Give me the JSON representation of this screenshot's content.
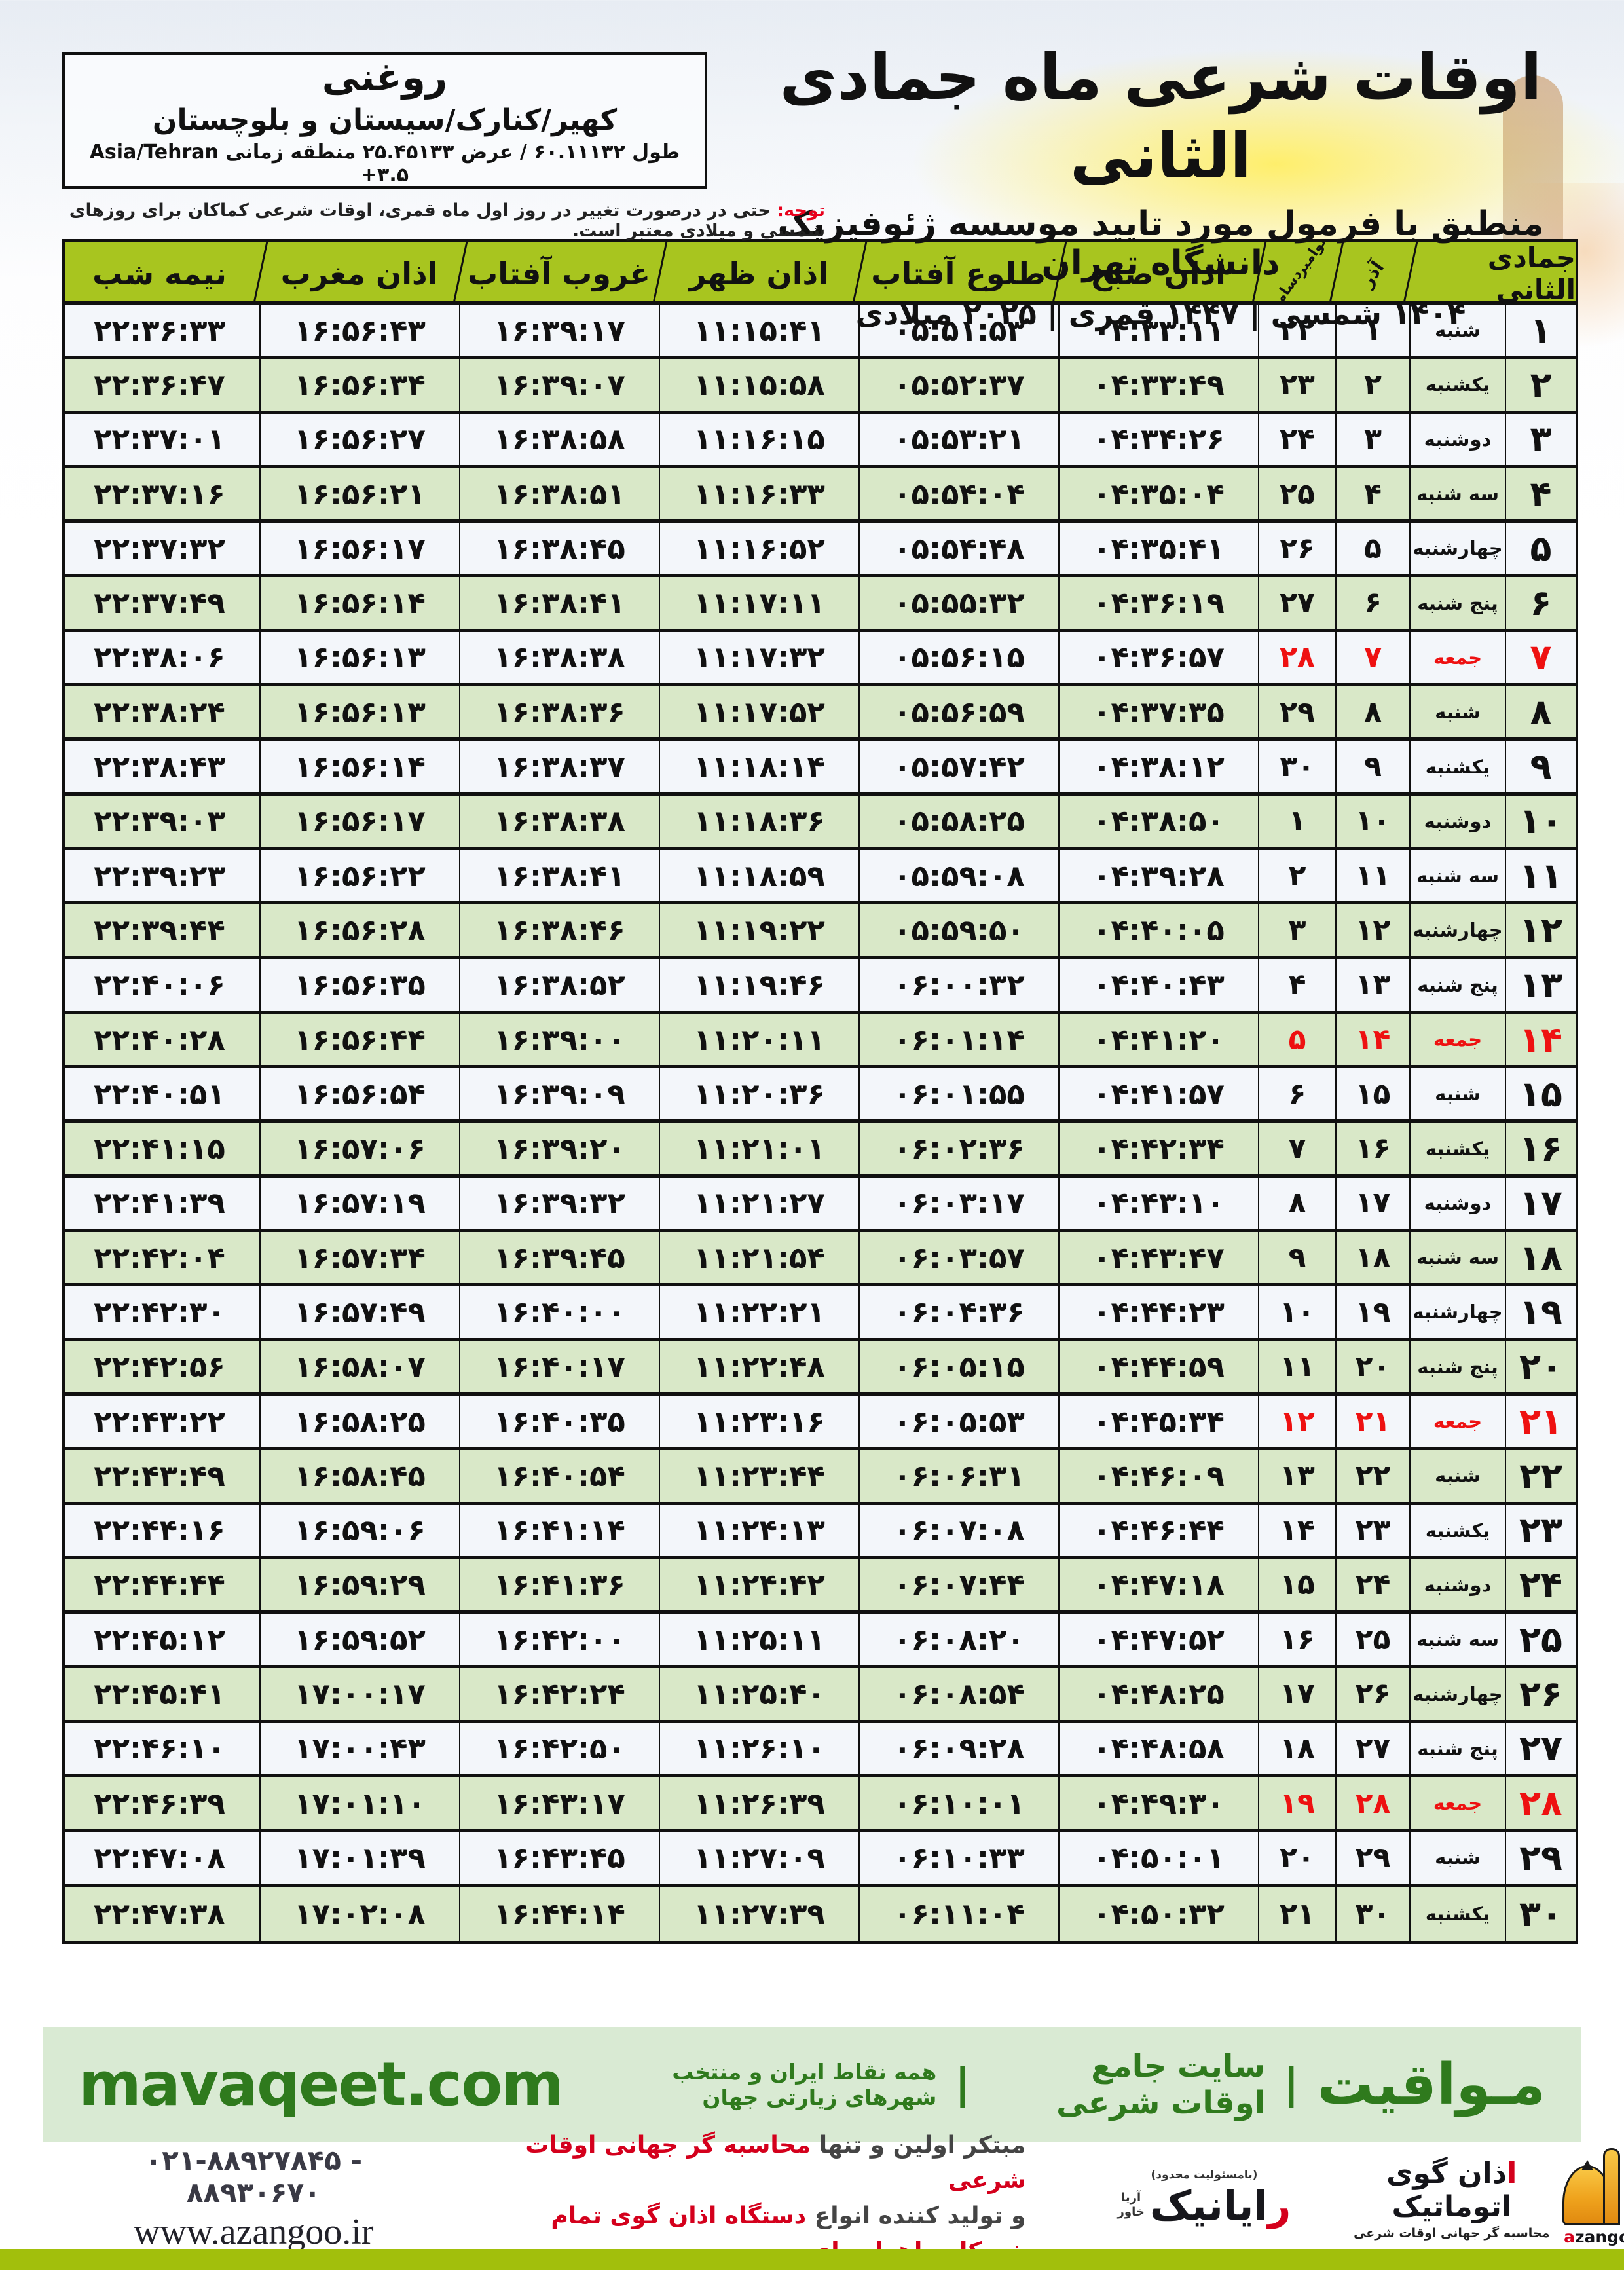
{
  "colors": {
    "header_green": "#a8c51f",
    "row_light": "#f3f6fa",
    "row_green": "#d9e8c8",
    "friday_red": "#ee1111",
    "note_red": "#e8001c",
    "footer_bg": "#d9ead3",
    "footer_text": "#2f7a1d",
    "bottom_red": "#d4001c",
    "strip_green": "#a2bf0c",
    "border": "#101010"
  },
  "header": {
    "title": "اوقات شرعی ماه جمادی الثانی",
    "subtitle": "منطبق با فرمول مورد تایید موسسه ژئوفیزیک دانشگاه تهران",
    "dates": "۱۴۰۴ شمسی | ۱۴۴۷ قمری | ۲۰۲۵ میلادی"
  },
  "location": {
    "name": "روغنی",
    "region": "کهیر/کنارک/سیستان و بلوچستان",
    "coords": "طول ۶۰.۱۱۱۳۲ / عرض ۲۵.۴۵۱۳۳ منطقه زمانی Asia/Tehran +۳.۵"
  },
  "note": {
    "label": "توجه:",
    "text": " حتی در درصورت تغییر در روز اول ماه قمری، اوقات شرعی کماکان برای روزهای شمسی و میلادی معتبر است."
  },
  "table": {
    "headers": {
      "month": "جمادی الثانی",
      "azar": "آذر",
      "nov": "نوامبر",
      "dec": "دسامبر",
      "sobh": "اذان صبح",
      "tolu": "طلوع آفتاب",
      "zohr": "اذان ظهر",
      "ghorub": "غروب آفتاب",
      "maghreb": "اذان مغرب",
      "nimeshab": "نیمه شب"
    },
    "rows": [
      {
        "day": "۱",
        "weekday": "شنبه",
        "azar": "۱",
        "greg": "۲۲",
        "sobh": "۰۴:۳۳:۱۱",
        "tolu": "۰۵:۵۱:۵۳",
        "zohr": "۱۱:۱۵:۴۱",
        "ghorub": "۱۶:۳۹:۱۷",
        "maghreb": "۱۶:۵۶:۴۳",
        "nimeshab": "۲۲:۳۶:۳۳",
        "friday": false
      },
      {
        "day": "۲",
        "weekday": "یکشنبه",
        "azar": "۲",
        "greg": "۲۳",
        "sobh": "۰۴:۳۳:۴۹",
        "tolu": "۰۵:۵۲:۳۷",
        "zohr": "۱۱:۱۵:۵۸",
        "ghorub": "۱۶:۳۹:۰۷",
        "maghreb": "۱۶:۵۶:۳۴",
        "nimeshab": "۲۲:۳۶:۴۷",
        "friday": false
      },
      {
        "day": "۳",
        "weekday": "دوشنبه",
        "azar": "۳",
        "greg": "۲۴",
        "sobh": "۰۴:۳۴:۲۶",
        "tolu": "۰۵:۵۳:۲۱",
        "zohr": "۱۱:۱۶:۱۵",
        "ghorub": "۱۶:۳۸:۵۸",
        "maghreb": "۱۶:۵۶:۲۷",
        "nimeshab": "۲۲:۳۷:۰۱",
        "friday": false
      },
      {
        "day": "۴",
        "weekday": "سه شنبه",
        "azar": "۴",
        "greg": "۲۵",
        "sobh": "۰۴:۳۵:۰۴",
        "tolu": "۰۵:۵۴:۰۴",
        "zohr": "۱۱:۱۶:۳۳",
        "ghorub": "۱۶:۳۸:۵۱",
        "maghreb": "۱۶:۵۶:۲۱",
        "nimeshab": "۲۲:۳۷:۱۶",
        "friday": false
      },
      {
        "day": "۵",
        "weekday": "چهارشنبه",
        "azar": "۵",
        "greg": "۲۶",
        "sobh": "۰۴:۳۵:۴۱",
        "tolu": "۰۵:۵۴:۴۸",
        "zohr": "۱۱:۱۶:۵۲",
        "ghorub": "۱۶:۳۸:۴۵",
        "maghreb": "۱۶:۵۶:۱۷",
        "nimeshab": "۲۲:۳۷:۳۲",
        "friday": false
      },
      {
        "day": "۶",
        "weekday": "پنج شنبه",
        "azar": "۶",
        "greg": "۲۷",
        "sobh": "۰۴:۳۶:۱۹",
        "tolu": "۰۵:۵۵:۳۲",
        "zohr": "۱۱:۱۷:۱۱",
        "ghorub": "۱۶:۳۸:۴۱",
        "maghreb": "۱۶:۵۶:۱۴",
        "nimeshab": "۲۲:۳۷:۴۹",
        "friday": false
      },
      {
        "day": "۷",
        "weekday": "جمعه",
        "azar": "۷",
        "greg": "۲۸",
        "sobh": "۰۴:۳۶:۵۷",
        "tolu": "۰۵:۵۶:۱۵",
        "zohr": "۱۱:۱۷:۳۲",
        "ghorub": "۱۶:۳۸:۳۸",
        "maghreb": "۱۶:۵۶:۱۳",
        "nimeshab": "۲۲:۳۸:۰۶",
        "friday": true
      },
      {
        "day": "۸",
        "weekday": "شنبه",
        "azar": "۸",
        "greg": "۲۹",
        "sobh": "۰۴:۳۷:۳۵",
        "tolu": "۰۵:۵۶:۵۹",
        "zohr": "۱۱:۱۷:۵۲",
        "ghorub": "۱۶:۳۸:۳۶",
        "maghreb": "۱۶:۵۶:۱۳",
        "nimeshab": "۲۲:۳۸:۲۴",
        "friday": false
      },
      {
        "day": "۹",
        "weekday": "یکشنبه",
        "azar": "۹",
        "greg": "۳۰",
        "sobh": "۰۴:۳۸:۱۲",
        "tolu": "۰۵:۵۷:۴۲",
        "zohr": "۱۱:۱۸:۱۴",
        "ghorub": "۱۶:۳۸:۳۷",
        "maghreb": "۱۶:۵۶:۱۴",
        "nimeshab": "۲۲:۳۸:۴۳",
        "friday": false
      },
      {
        "day": "۱۰",
        "weekday": "دوشنبه",
        "azar": "۱۰",
        "greg": "۱",
        "sobh": "۰۴:۳۸:۵۰",
        "tolu": "۰۵:۵۸:۲۵",
        "zohr": "۱۱:۱۸:۳۶",
        "ghorub": "۱۶:۳۸:۳۸",
        "maghreb": "۱۶:۵۶:۱۷",
        "nimeshab": "۲۲:۳۹:۰۳",
        "friday": false
      },
      {
        "day": "۱۱",
        "weekday": "سه شنبه",
        "azar": "۱۱",
        "greg": "۲",
        "sobh": "۰۴:۳۹:۲۸",
        "tolu": "۰۵:۵۹:۰۸",
        "zohr": "۱۱:۱۸:۵۹",
        "ghorub": "۱۶:۳۸:۴۱",
        "maghreb": "۱۶:۵۶:۲۲",
        "nimeshab": "۲۲:۳۹:۲۳",
        "friday": false
      },
      {
        "day": "۱۲",
        "weekday": "چهارشنبه",
        "azar": "۱۲",
        "greg": "۳",
        "sobh": "۰۴:۴۰:۰۵",
        "tolu": "۰۵:۵۹:۵۰",
        "zohr": "۱۱:۱۹:۲۲",
        "ghorub": "۱۶:۳۸:۴۶",
        "maghreb": "۱۶:۵۶:۲۸",
        "nimeshab": "۲۲:۳۹:۴۴",
        "friday": false
      },
      {
        "day": "۱۳",
        "weekday": "پنج شنبه",
        "azar": "۱۳",
        "greg": "۴",
        "sobh": "۰۴:۴۰:۴۳",
        "tolu": "۰۶:۰۰:۳۲",
        "zohr": "۱۱:۱۹:۴۶",
        "ghorub": "۱۶:۳۸:۵۲",
        "maghreb": "۱۶:۵۶:۳۵",
        "nimeshab": "۲۲:۴۰:۰۶",
        "friday": false
      },
      {
        "day": "۱۴",
        "weekday": "جمعه",
        "azar": "۱۴",
        "greg": "۵",
        "sobh": "۰۴:۴۱:۲۰",
        "tolu": "۰۶:۰۱:۱۴",
        "zohr": "۱۱:۲۰:۱۱",
        "ghorub": "۱۶:۳۹:۰۰",
        "maghreb": "۱۶:۵۶:۴۴",
        "nimeshab": "۲۲:۴۰:۲۸",
        "friday": true
      },
      {
        "day": "۱۵",
        "weekday": "شنبه",
        "azar": "۱۵",
        "greg": "۶",
        "sobh": "۰۴:۴۱:۵۷",
        "tolu": "۰۶:۰۱:۵۵",
        "zohr": "۱۱:۲۰:۳۶",
        "ghorub": "۱۶:۳۹:۰۹",
        "maghreb": "۱۶:۵۶:۵۴",
        "nimeshab": "۲۲:۴۰:۵۱",
        "friday": false
      },
      {
        "day": "۱۶",
        "weekday": "یکشنبه",
        "azar": "۱۶",
        "greg": "۷",
        "sobh": "۰۴:۴۲:۳۴",
        "tolu": "۰۶:۰۲:۳۶",
        "zohr": "۱۱:۲۱:۰۱",
        "ghorub": "۱۶:۳۹:۲۰",
        "maghreb": "۱۶:۵۷:۰۶",
        "nimeshab": "۲۲:۴۱:۱۵",
        "friday": false
      },
      {
        "day": "۱۷",
        "weekday": "دوشنبه",
        "azar": "۱۷",
        "greg": "۸",
        "sobh": "۰۴:۴۳:۱۰",
        "tolu": "۰۶:۰۳:۱۷",
        "zohr": "۱۱:۲۱:۲۷",
        "ghorub": "۱۶:۳۹:۳۲",
        "maghreb": "۱۶:۵۷:۱۹",
        "nimeshab": "۲۲:۴۱:۳۹",
        "friday": false
      },
      {
        "day": "۱۸",
        "weekday": "سه شنبه",
        "azar": "۱۸",
        "greg": "۹",
        "sobh": "۰۴:۴۳:۴۷",
        "tolu": "۰۶:۰۳:۵۷",
        "zohr": "۱۱:۲۱:۵۴",
        "ghorub": "۱۶:۳۹:۴۵",
        "maghreb": "۱۶:۵۷:۳۴",
        "nimeshab": "۲۲:۴۲:۰۴",
        "friday": false
      },
      {
        "day": "۱۹",
        "weekday": "چهارشنبه",
        "azar": "۱۹",
        "greg": "۱۰",
        "sobh": "۰۴:۴۴:۲۳",
        "tolu": "۰۶:۰۴:۳۶",
        "zohr": "۱۱:۲۲:۲۱",
        "ghorub": "۱۶:۴۰:۰۰",
        "maghreb": "۱۶:۵۷:۴۹",
        "nimeshab": "۲۲:۴۲:۳۰",
        "friday": false
      },
      {
        "day": "۲۰",
        "weekday": "پنج شنبه",
        "azar": "۲۰",
        "greg": "۱۱",
        "sobh": "۰۴:۴۴:۵۹",
        "tolu": "۰۶:۰۵:۱۵",
        "zohr": "۱۱:۲۲:۴۸",
        "ghorub": "۱۶:۴۰:۱۷",
        "maghreb": "۱۶:۵۸:۰۷",
        "nimeshab": "۲۲:۴۲:۵۶",
        "friday": false
      },
      {
        "day": "۲۱",
        "weekday": "جمعه",
        "azar": "۲۱",
        "greg": "۱۲",
        "sobh": "۰۴:۴۵:۳۴",
        "tolu": "۰۶:۰۵:۵۳",
        "zohr": "۱۱:۲۳:۱۶",
        "ghorub": "۱۶:۴۰:۳۵",
        "maghreb": "۱۶:۵۸:۲۵",
        "nimeshab": "۲۲:۴۳:۲۲",
        "friday": true
      },
      {
        "day": "۲۲",
        "weekday": "شنبه",
        "azar": "۲۲",
        "greg": "۱۳",
        "sobh": "۰۴:۴۶:۰۹",
        "tolu": "۰۶:۰۶:۳۱",
        "zohr": "۱۱:۲۳:۴۴",
        "ghorub": "۱۶:۴۰:۵۴",
        "maghreb": "۱۶:۵۸:۴۵",
        "nimeshab": "۲۲:۴۳:۴۹",
        "friday": false
      },
      {
        "day": "۲۳",
        "weekday": "یکشنبه",
        "azar": "۲۳",
        "greg": "۱۴",
        "sobh": "۰۴:۴۶:۴۴",
        "tolu": "۰۶:۰۷:۰۸",
        "zohr": "۱۱:۲۴:۱۳",
        "ghorub": "۱۶:۴۱:۱۴",
        "maghreb": "۱۶:۵۹:۰۶",
        "nimeshab": "۲۲:۴۴:۱۶",
        "friday": false
      },
      {
        "day": "۲۴",
        "weekday": "دوشنبه",
        "azar": "۲۴",
        "greg": "۱۵",
        "sobh": "۰۴:۴۷:۱۸",
        "tolu": "۰۶:۰۷:۴۴",
        "zohr": "۱۱:۲۴:۴۲",
        "ghorub": "۱۶:۴۱:۳۶",
        "maghreb": "۱۶:۵۹:۲۹",
        "nimeshab": "۲۲:۴۴:۴۴",
        "friday": false
      },
      {
        "day": "۲۵",
        "weekday": "سه شنبه",
        "azar": "۲۵",
        "greg": "۱۶",
        "sobh": "۰۴:۴۷:۵۲",
        "tolu": "۰۶:۰۸:۲۰",
        "zohr": "۱۱:۲۵:۱۱",
        "ghorub": "۱۶:۴۲:۰۰",
        "maghreb": "۱۶:۵۹:۵۲",
        "nimeshab": "۲۲:۴۵:۱۲",
        "friday": false
      },
      {
        "day": "۲۶",
        "weekday": "چهارشنبه",
        "azar": "۲۶",
        "greg": "۱۷",
        "sobh": "۰۴:۴۸:۲۵",
        "tolu": "۰۶:۰۸:۵۴",
        "zohr": "۱۱:۲۵:۴۰",
        "ghorub": "۱۶:۴۲:۲۴",
        "maghreb": "۱۷:۰۰:۱۷",
        "nimeshab": "۲۲:۴۵:۴۱",
        "friday": false
      },
      {
        "day": "۲۷",
        "weekday": "پنج شنبه",
        "azar": "۲۷",
        "greg": "۱۸",
        "sobh": "۰۴:۴۸:۵۸",
        "tolu": "۰۶:۰۹:۲۸",
        "zohr": "۱۱:۲۶:۱۰",
        "ghorub": "۱۶:۴۲:۵۰",
        "maghreb": "۱۷:۰۰:۴۳",
        "nimeshab": "۲۲:۴۶:۱۰",
        "friday": false
      },
      {
        "day": "۲۸",
        "weekday": "جمعه",
        "azar": "۲۸",
        "greg": "۱۹",
        "sobh": "۰۴:۴۹:۳۰",
        "tolu": "۰۶:۱۰:۰۱",
        "zohr": "۱۱:۲۶:۳۹",
        "ghorub": "۱۶:۴۳:۱۷",
        "maghreb": "۱۷:۰۱:۱۰",
        "nimeshab": "۲۲:۴۶:۳۹",
        "friday": true
      },
      {
        "day": "۲۹",
        "weekday": "شنبه",
        "azar": "۲۹",
        "greg": "۲۰",
        "sobh": "۰۴:۵۰:۰۱",
        "tolu": "۰۶:۱۰:۳۳",
        "zohr": "۱۱:۲۷:۰۹",
        "ghorub": "۱۶:۴۳:۴۵",
        "maghreb": "۱۷:۰۱:۳۹",
        "nimeshab": "۲۲:۴۷:۰۸",
        "friday": false
      },
      {
        "day": "۳۰",
        "weekday": "یکشنبه",
        "azar": "۳۰",
        "greg": "۲۱",
        "sobh": "۰۴:۵۰:۳۲",
        "tolu": "۰۶:۱۱:۰۴",
        "zohr": "۱۱:۲۷:۳۹",
        "ghorub": "۱۶:۴۴:۱۴",
        "maghreb": "۱۷:۰۲:۰۸",
        "nimeshab": "۲۲:۴۷:۳۸",
        "friday": false
      }
    ]
  },
  "footer": {
    "brand": "مـواقیت",
    "divider": "|",
    "site_label": "سایت جامع اوقات شرعی",
    "coverage": "همه نقاط ایران و منتخب شهرهای زیارتی جهان",
    "url": "mavaqeet.com"
  },
  "bottom": {
    "phones": "۰۲۱-۸۸۹۲۷۸۴۵ - ۸۸۹۳۰۶۷۰",
    "website": "www.azangoo.ir",
    "line1_dark": "مبتکر اولین و تنها",
    "line1_red": " محاسبه گر جهانی اوقات شرعی",
    "line2_dark": "و تولید کننده انواع",
    "line2_red": " دستگاه اذان گوی تمام خودکار ماهواره ای",
    "rayanik": {
      "top": "(بامسئولیت محدود)",
      "name_first": "ر",
      "name_rest": "ایانیک",
      "side1": "آریا",
      "side2": "خاور"
    },
    "azangoo": {
      "word_first": "ا",
      "word_rest": "ذان گوی اتوماتیک",
      "tagline": "محاسبه گر جهانی اوقات شرعی",
      "latin_first": "a",
      "latin_rest": "zangoo"
    }
  }
}
